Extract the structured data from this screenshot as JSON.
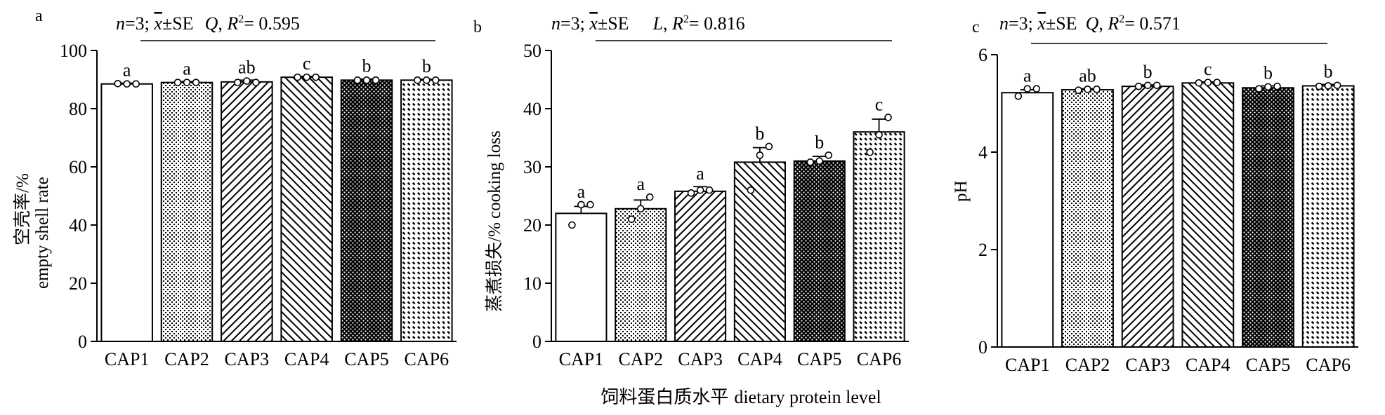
{
  "chart_data": [
    {
      "type": "bar",
      "panel_label": "a",
      "stats_text": {
        "n": "n",
        "n_rest": "=3; ",
        "xbar": "x",
        "se": "±SE",
        "model": "Q",
        "comma": ", ",
        "r": "R",
        "sup": "2",
        "r_val": "= 0.595"
      },
      "categories": [
        "CAP1",
        "CAP2",
        "CAP3",
        "CAP4",
        "CAP5",
        "CAP6"
      ],
      "values": [
        88.5,
        89.0,
        89.2,
        90.8,
        89.8,
        89.8
      ],
      "errors": [
        0.3,
        0.3,
        0.6,
        0.3,
        0.4,
        0.3
      ],
      "points": [
        [
          88.6,
          88.5,
          88.5
        ],
        [
          89.0,
          89.0,
          89.0
        ],
        [
          89.0,
          89.5,
          89.0
        ],
        [
          90.8,
          90.8,
          90.8
        ],
        [
          89.8,
          89.8,
          89.8
        ],
        [
          89.8,
          89.8,
          89.8
        ]
      ],
      "letters": [
        "a",
        "a",
        "ab",
        "c",
        "b",
        "b"
      ],
      "ylabel_cn": "空壳率/%",
      "ylabel": "empty shell rate",
      "ylim": [
        0,
        100
      ],
      "yticks": [
        0,
        20,
        40,
        60,
        80,
        100
      ]
    },
    {
      "type": "bar",
      "panel_label": "b",
      "stats_text": {
        "n": "n",
        "n_rest": "=3; ",
        "xbar": "x",
        "se": "±SE",
        "model": "L",
        "comma": ", ",
        "r": "R",
        "sup": "2",
        "r_val": "= 0.816"
      },
      "categories": [
        "CAP1",
        "CAP2",
        "CAP3",
        "CAP4",
        "CAP5",
        "CAP6"
      ],
      "values": [
        22.0,
        22.8,
        25.8,
        30.8,
        31.0,
        36.0
      ],
      "errors": [
        1.2,
        1.5,
        0.8,
        2.5,
        0.8,
        2.2
      ],
      "points": [
        [
          20.0,
          23.5,
          23.5
        ],
        [
          21.0,
          22.8,
          24.8
        ],
        [
          25.5,
          26.0,
          26.0
        ],
        [
          26.0,
          32.0,
          33.5
        ],
        [
          30.8,
          31.0,
          32.0
        ],
        [
          32.5,
          35.5,
          38.5
        ]
      ],
      "letters": [
        "a",
        "a",
        "a",
        "b",
        "b",
        "c"
      ],
      "ylabel_cn": "蒸煮损失/%",
      "ylabel": "cooking loss",
      "xlabel_cn": "饲料蛋白质水平",
      "xlabel": "dietary protein level",
      "ylim": [
        0,
        50
      ],
      "yticks": [
        0,
        10,
        20,
        30,
        40,
        50
      ]
    },
    {
      "type": "bar",
      "panel_label": "c",
      "stats_text": {
        "n": "n",
        "n_rest": "=3; ",
        "xbar": "x",
        "se": "±SE",
        "model": "Q",
        "comma": ", ",
        "r": "R",
        "sup": "2",
        "r_val": "= 0.571"
      },
      "categories": [
        "CAP1",
        "CAP2",
        "CAP3",
        "CAP4",
        "CAP5",
        "CAP6"
      ],
      "values": [
        5.22,
        5.28,
        5.35,
        5.42,
        5.32,
        5.36
      ],
      "errors": [
        0.06,
        0.02,
        0.03,
        0.02,
        0.04,
        0.03
      ],
      "points": [
        [
          5.15,
          5.3,
          5.3
        ],
        [
          5.27,
          5.29,
          5.29
        ],
        [
          5.35,
          5.37,
          5.37
        ],
        [
          5.42,
          5.43,
          5.43
        ],
        [
          5.3,
          5.34,
          5.35
        ],
        [
          5.35,
          5.36,
          5.37
        ]
      ],
      "letters": [
        "a",
        "ab",
        "b",
        "c",
        "b",
        "b"
      ],
      "ylabel": "pH",
      "ylim": [
        0,
        6
      ],
      "yticks": [
        0,
        2,
        4,
        6
      ]
    }
  ],
  "style": {
    "bar_fill": "#ffffff",
    "bar_stroke": "#000000",
    "pattern_names": [
      "plain",
      "fine-dots",
      "diagonal-up",
      "diagonal-down",
      "dense-dark-dots",
      "dashed-diagonal"
    ]
  }
}
